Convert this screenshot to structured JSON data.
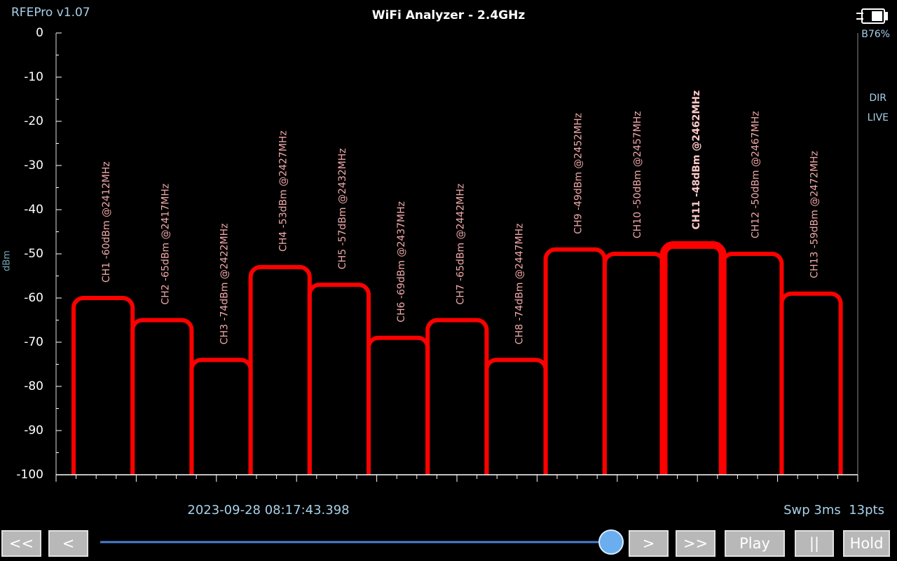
{
  "app": {
    "version": "RFEPro v1.07",
    "battery": "B76%",
    "mode": "DIR",
    "state": "LIVE"
  },
  "status": {
    "timestamp": "2023-09-28 08:17:43.398",
    "sweep": "Swp 3ms  13pts"
  },
  "buttons": [
    "<<",
    "<",
    ">",
    ">>",
    "Play",
    "||",
    "Hold"
  ],
  "chart_data": {
    "type": "bar",
    "title": "WiFi Analyzer - 2.4GHz",
    "ylabel": "dBm",
    "values": [
      -60,
      -65,
      -74,
      -53,
      -57,
      -69,
      -65,
      -74,
      -49,
      -50,
      -48,
      -50,
      -59
    ],
    "value_labels": [
      "CH1 -60dBm @2412MHz",
      "CH2 -65dBm @2417MHz",
      "CH3 -74dBm @2422MHz",
      "CH4 -53dBm @2427MHz",
      "CH5 -57dBm @2432MHz",
      "CH6 -69dBm @2437MHz",
      "CH7 -65dBm @2442MHz",
      "CH8 -74dBm @2447MHz",
      "CH9 -49dBm @2452MHz",
      "CH10 -50dBm @2457MHz",
      "CH11 -48dBm @2462MHz",
      "CH12 -50dBm @2467MHz",
      "CH13 -59dBm @2472MHz"
    ],
    "color": "#ff0000",
    "highlight_index": 10,
    "ylim": [
      -100,
      0
    ],
    "yticks": [
      0,
      -10,
      -20,
      -30,
      -40,
      -50,
      -60,
      -70,
      -80,
      -90,
      -100
    ],
    "grid": false
  }
}
